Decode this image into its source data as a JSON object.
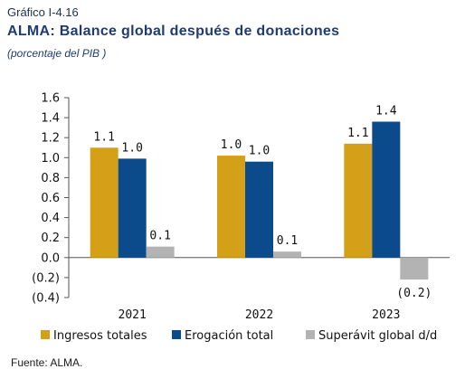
{
  "header": {
    "kicker": "Gráfico I-4.16",
    "title": "ALMA: Balance global después de donaciones",
    "subtitle": "(porcentaje del PIB )"
  },
  "footer": {
    "source": "Fuente: ALMA."
  },
  "chart_data": {
    "type": "bar",
    "categories": [
      "2021",
      "2022",
      "2023"
    ],
    "series": [
      {
        "name": "Ingresos totales",
        "color": "#d4a017",
        "values": [
          1.1,
          1.02,
          1.14
        ],
        "labels": [
          "1.1",
          "1.0",
          "1.1"
        ]
      },
      {
        "name": "Erogación total",
        "color": "#0b4a8b",
        "values": [
          0.99,
          0.96,
          1.36
        ],
        "labels": [
          "1.0",
          "1.0",
          "1.4"
        ]
      },
      {
        "name": "Superávit global d/d",
        "color": "#b3b3b3",
        "values": [
          0.11,
          0.06,
          -0.22
        ],
        "labels": [
          "0.1",
          "0.1",
          "(0.2)"
        ]
      }
    ],
    "ylim": [
      -0.4,
      1.6
    ],
    "yticks": [
      1.6,
      1.4,
      1.2,
      1.0,
      0.8,
      0.6,
      0.4,
      0.2,
      0.0,
      -0.2,
      -0.4
    ],
    "ytick_labels": [
      "1.6",
      "1.4",
      "1.2",
      "1.0",
      "0.8",
      "0.6",
      "0.4",
      "0.2",
      "0.0",
      "(0.2)",
      "(0.4)"
    ],
    "grid": false,
    "legend": "bottom"
  }
}
